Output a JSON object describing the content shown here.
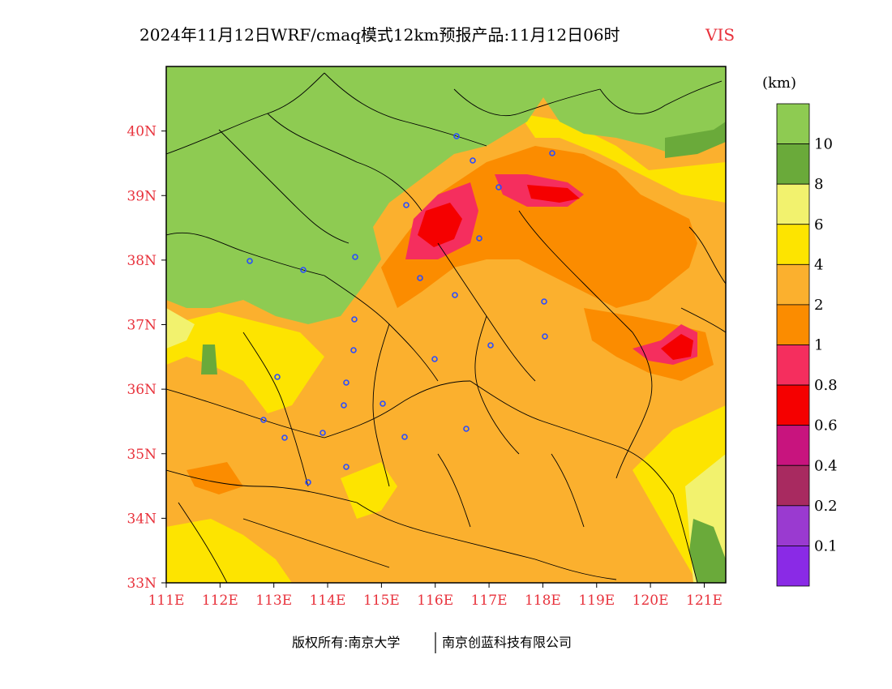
{
  "title": {
    "main": "2024年11月12日WRF/cmaq模式12km预报产品:11月12日06时",
    "variable": "VIS"
  },
  "map": {
    "lon_range": [
      111,
      121.4
    ],
    "lat_range": [
      33,
      41
    ],
    "x_ticks": [
      "111E",
      "112E",
      "113E",
      "114E",
      "115E",
      "116E",
      "117E",
      "118E",
      "119E",
      "120E",
      "121E"
    ],
    "y_ticks": [
      "40N",
      "39N",
      "38N",
      "37N",
      "36N",
      "35N",
      "34N",
      "33N"
    ],
    "station_icon": "station-ring-icon"
  },
  "colorbar": {
    "unit": "(km)",
    "levels": [
      {
        "label": "10",
        "color": "#8ecb52"
      },
      {
        "label": "8",
        "color": "#6aaa3a"
      },
      {
        "label": "6",
        "color": "#f2f26e"
      },
      {
        "label": "4",
        "color": "#fde400"
      },
      {
        "label": "2",
        "color": "#fbb02e"
      },
      {
        "label": "1",
        "color": "#fb8c00"
      },
      {
        "label": "0.8",
        "color": "#f52e5e"
      },
      {
        "label": "0.6",
        "color": "#f50000"
      },
      {
        "label": "0.4",
        "color": "#c8147e"
      },
      {
        "label": "0.2",
        "color": "#a82a60"
      },
      {
        "label": "0.1",
        "color": "#9a3ad0"
      },
      {
        "label": "",
        "color": "#8a2ae6"
      }
    ]
  },
  "footer": {
    "left": "版权所有:南京大学",
    "right": "南京创蓝科技有限公司"
  }
}
